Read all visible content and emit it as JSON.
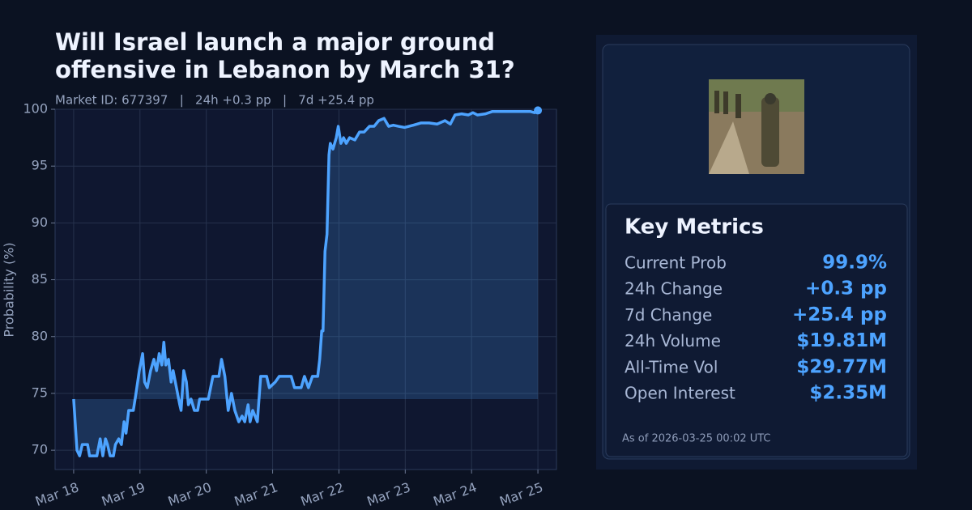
{
  "chart_data": {
    "type": "line",
    "title": "Will Israel launch a major ground offensive in Lebanon by March 31?",
    "subtitle": "Market ID: 677397   |   24h +0.3 pp   |   7d +25.4 pp",
    "ylabel": "Probability (%)",
    "x": [
      18.0,
      18.05,
      18.09,
      18.13,
      18.21,
      18.24,
      18.35,
      18.4,
      18.44,
      18.48,
      18.51,
      18.55,
      18.6,
      18.63,
      18.68,
      18.72,
      18.76,
      18.79,
      18.83,
      18.87,
      18.9,
      18.94,
      18.99,
      19.04,
      19.07,
      19.11,
      19.16,
      19.21,
      19.25,
      19.29,
      19.33,
      19.36,
      19.39,
      19.43,
      19.47,
      19.5,
      19.55,
      19.6,
      19.62,
      19.66,
      19.7,
      19.73,
      19.77,
      19.82,
      19.87,
      19.9,
      20.03,
      20.1,
      20.19,
      20.23,
      20.28,
      20.33,
      20.38,
      20.43,
      20.49,
      20.54,
      20.58,
      20.63,
      20.66,
      20.7,
      20.77,
      20.82,
      20.91,
      20.95,
      21.04,
      21.1,
      21.28,
      21.33,
      21.43,
      21.48,
      21.54,
      21.6,
      21.68,
      21.71,
      21.74,
      21.76,
      21.79,
      21.82,
      21.85,
      21.87,
      21.91,
      21.96,
      21.99,
      22.03,
      22.07,
      22.11,
      22.16,
      22.24,
      22.31,
      22.38,
      22.46,
      22.53,
      22.6,
      22.68,
      22.75,
      22.82,
      22.9,
      22.99,
      23.12,
      23.24,
      23.36,
      23.48,
      23.6,
      23.68,
      23.75,
      23.85,
      23.95,
      24.02,
      24.09,
      24.21,
      24.31,
      24.46,
      24.7,
      24.89,
      24.95,
      25.0
    ],
    "series": [
      {
        "color": "#4da3ff",
        "values": [
          74.5,
          70,
          69.5,
          70.5,
          70.5,
          69.5,
          69.5,
          71,
          69.5,
          71,
          70.5,
          69.5,
          69.5,
          70.5,
          71,
          70.5,
          72.5,
          71.5,
          73.5,
          73.5,
          73.5,
          75,
          77,
          78.5,
          76,
          75.5,
          77,
          78,
          77,
          78.5,
          77.5,
          79.5,
          77.5,
          78,
          76,
          77,
          75.5,
          74,
          73.5,
          77,
          76,
          74,
          74.5,
          73.5,
          73.5,
          74.5,
          74.5,
          76.5,
          76.5,
          78,
          76.5,
          73.5,
          75,
          73.5,
          72.5,
          73,
          72.5,
          74,
          72.5,
          73.5,
          72.5,
          76.5,
          76.5,
          75.5,
          76,
          76.5,
          76.5,
          75.5,
          75.5,
          76.5,
          75.5,
          76.5,
          76.5,
          78,
          80.5,
          80.5,
          87.5,
          89,
          96,
          97,
          96.5,
          97.5,
          98.5,
          97,
          97.5,
          97,
          97.5,
          97.3,
          98,
          98,
          98.5,
          98.5,
          99,
          99.2,
          98.5,
          98.6,
          98.5,
          98.4,
          98.6,
          98.8,
          98.8,
          98.7,
          99,
          98.7,
          99.5,
          99.6,
          99.5,
          99.7,
          99.5,
          99.6,
          99.8,
          99.8,
          99.8,
          99.8,
          99.7,
          99.9
        ]
      }
    ],
    "xlim": [
      17.72,
      25.28
    ],
    "xticks": [
      {
        "value": 18,
        "label": "Mar 18"
      },
      {
        "value": 19,
        "label": "Mar 19"
      },
      {
        "value": 20,
        "label": "Mar 20"
      },
      {
        "value": 21,
        "label": "Mar 21"
      },
      {
        "value": 22,
        "label": "Mar 22"
      },
      {
        "value": 23,
        "label": "Mar 23"
      },
      {
        "value": 24,
        "label": "Mar 24"
      },
      {
        "value": 25,
        "label": "Mar 25"
      }
    ],
    "ylim": [
      68.3,
      100
    ],
    "yticks": [
      70,
      75,
      80,
      85,
      90,
      95,
      100
    ],
    "grid": true
  },
  "panel": {
    "heading": "Key Metrics",
    "metrics": [
      {
        "label": "Current Prob",
        "value": "99.9%"
      },
      {
        "label": "24h Change",
        "value": "+0.3 pp"
      },
      {
        "label": "7d Change",
        "value": "+25.4 pp"
      },
      {
        "label": "24h Volume",
        "value": "$19.81M"
      },
      {
        "label": "All-Time Vol",
        "value": "$29.77M"
      },
      {
        "label": "Open Interest",
        "value": "$2.35M"
      }
    ],
    "footnote": "As of 2026-03-25 00:02 UTC"
  }
}
